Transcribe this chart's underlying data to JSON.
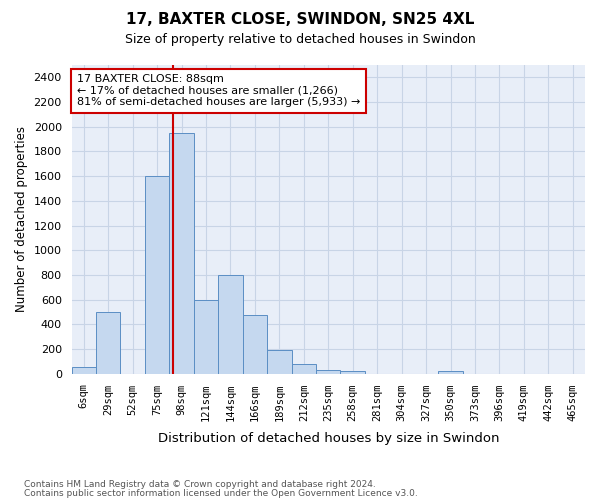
{
  "title1": "17, BAXTER CLOSE, SWINDON, SN25 4XL",
  "title2": "Size of property relative to detached houses in Swindon",
  "xlabel": "Distribution of detached houses by size in Swindon",
  "ylabel": "Number of detached properties",
  "footnote1": "Contains HM Land Registry data © Crown copyright and database right 2024.",
  "footnote2": "Contains public sector information licensed under the Open Government Licence v3.0.",
  "annotation_line1": "17 BAXTER CLOSE: 88sqm",
  "annotation_line2": "← 17% of detached houses are smaller (1,266)",
  "annotation_line3": "81% of semi-detached houses are larger (5,933) →",
  "bar_color": "#c5d8ef",
  "bar_edge_color": "#5b8ec4",
  "vline_color": "#cc0000",
  "annotation_box_edge": "#cc0000",
  "annotation_box_face": "#ffffff",
  "grid_color": "#c8d4e6",
  "background_color": "#e8eef8",
  "categories": [
    "6sqm",
    "29sqm",
    "52sqm",
    "75sqm",
    "98sqm",
    "121sqm",
    "144sqm",
    "166sqm",
    "189sqm",
    "212sqm",
    "235sqm",
    "258sqm",
    "281sqm",
    "304sqm",
    "327sqm",
    "350sqm",
    "373sqm",
    "396sqm",
    "419sqm",
    "442sqm",
    "465sqm"
  ],
  "values": [
    50,
    500,
    0,
    1600,
    1950,
    600,
    800,
    475,
    195,
    80,
    30,
    20,
    0,
    0,
    0,
    20,
    0,
    0,
    0,
    0,
    0
  ],
  "vline_x_index": 3.65,
  "ylim": [
    0,
    2500
  ],
  "yticks": [
    0,
    200,
    400,
    600,
    800,
    1000,
    1200,
    1400,
    1600,
    1800,
    2000,
    2200,
    2400
  ]
}
